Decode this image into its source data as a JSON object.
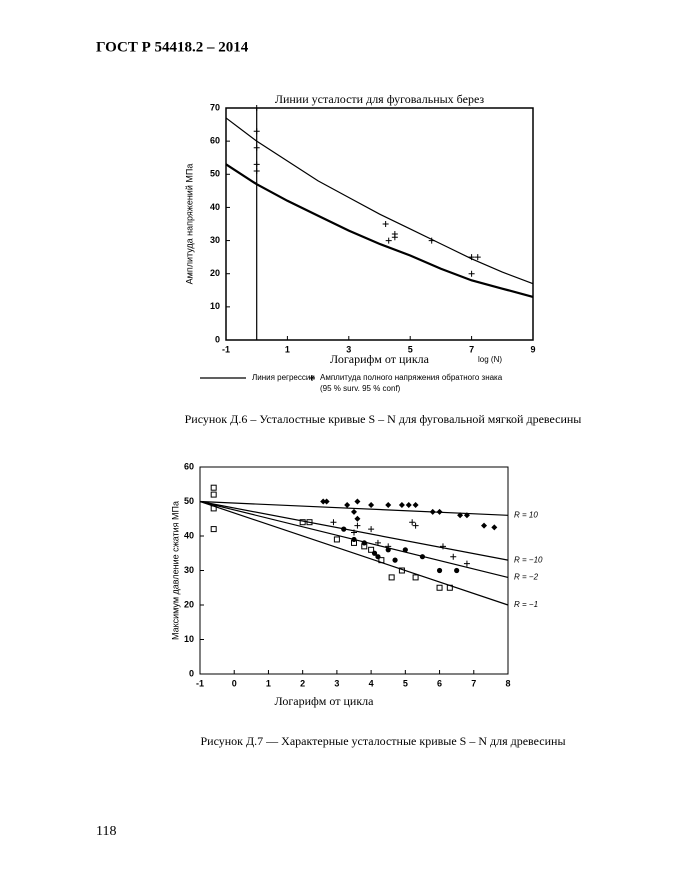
{
  "header": {
    "title": "ГОСТ Р 54418.2 – 2014"
  },
  "page_number": "118",
  "chart_data": [
    {
      "type": "line",
      "title": "Линии усталости для фуговальных берез",
      "ylabel": "Амплитуда напряжений МПа",
      "xlabel": "Логарифм от цикла",
      "xlabel2": "log (N)",
      "xlim": [
        -1,
        9
      ],
      "xticks": [
        -1,
        1,
        3,
        5,
        7,
        9
      ],
      "ylim": [
        0,
        70
      ],
      "yticks": [
        0,
        10,
        20,
        30,
        40,
        50,
        60,
        70
      ],
      "vline": 0,
      "series": [
        {
          "name": "Линия регрессии",
          "type": "line",
          "color": "#000000",
          "x": [
            -1,
            0,
            1,
            2,
            3,
            4,
            5,
            6,
            7,
            8,
            9
          ],
          "values": [
            53,
            47,
            42,
            37.5,
            33,
            29,
            25.5,
            21.5,
            18,
            15.5,
            13
          ]
        },
        {
          "name": "Амплитуда полного напряжения обратного знака",
          "type": "scatter",
          "marker": "plus",
          "color": "#000000",
          "x": [
            0,
            0,
            0,
            0,
            0,
            4.2,
            4.3,
            4.5,
            4.5,
            5.7,
            7,
            7.2,
            7
          ],
          "values": [
            70,
            63,
            58,
            53,
            51,
            35,
            30,
            32,
            31,
            30,
            25,
            25,
            20
          ]
        },
        {
          "type": "line",
          "color": "#000000",
          "x": [
            -1,
            0,
            1,
            2,
            3,
            4,
            5,
            6,
            7,
            8,
            9
          ],
          "values": [
            67,
            60,
            54,
            48,
            43,
            38,
            33.5,
            29,
            24.5,
            20.5,
            17
          ]
        }
      ],
      "legend_note": "(95 % surv. 95 % conf)",
      "caption": "Рисунок Д.6 – Усталостные кривые S – N для фуговальной мягкой древесины"
    },
    {
      "type": "line",
      "ylabel": "Максимум давление сжатия МПа",
      "xlabel": "Логарифм от цикла",
      "xlim": [
        -1,
        8
      ],
      "xticks": [
        -1,
        0,
        1,
        2,
        3,
        4,
        5,
        6,
        7,
        8
      ],
      "ylim": [
        0,
        60
      ],
      "yticks": [
        0,
        10,
        20,
        30,
        40,
        50,
        60
      ],
      "series": [
        {
          "name": "R = 10",
          "type": "line",
          "color": "#000000",
          "x": [
            -1,
            8
          ],
          "values": [
            50,
            46
          ]
        },
        {
          "name": "R = −10",
          "type": "line",
          "color": "#000000",
          "x": [
            -1,
            8
          ],
          "values": [
            50,
            33
          ]
        },
        {
          "name": "R = −2",
          "type": "line",
          "color": "#000000",
          "x": [
            -1,
            8
          ],
          "values": [
            50,
            28
          ]
        },
        {
          "name": "R = −1",
          "type": "line",
          "color": "#000000",
          "x": [
            -1,
            8
          ],
          "values": [
            50,
            20
          ]
        },
        {
          "type": "scatter",
          "marker": "diamond",
          "color": "#000000",
          "x": [
            2.6,
            2.7,
            3.3,
            3.6,
            4,
            4.5,
            4.9,
            5.1,
            5.3,
            5.8,
            6,
            6.6,
            6.8,
            7.3,
            7.6,
            3.5,
            3.6
          ],
          "values": [
            50,
            50,
            49,
            50,
            49,
            49,
            49,
            49,
            49,
            47,
            47,
            46,
            46,
            43,
            42.5,
            47,
            45
          ]
        },
        {
          "type": "scatter",
          "marker": "plus",
          "color": "#000000",
          "x": [
            2.9,
            3.5,
            3.6,
            4,
            4.2,
            4.5,
            5.2,
            5.3,
            6.1,
            6.4,
            6.8
          ],
          "values": [
            44,
            41,
            43,
            42,
            38,
            37,
            44,
            43,
            37,
            34,
            32
          ]
        },
        {
          "type": "scatter",
          "marker": "circle",
          "color": "#000000",
          "x": [
            3.2,
            3.5,
            3.8,
            4.1,
            4.2,
            4.5,
            4.7,
            5,
            5.5,
            6,
            6.5
          ],
          "values": [
            42,
            39,
            38,
            35,
            34,
            36,
            33,
            36,
            34,
            30,
            30
          ]
        },
        {
          "type": "scatter",
          "marker": "square",
          "color": "#000000",
          "x": [
            -0.6,
            -0.6,
            -0.6,
            -0.6,
            2,
            2.2,
            3,
            3.5,
            3.8,
            4,
            4.3,
            4.6,
            4.9,
            5.3,
            6,
            6.3
          ],
          "values": [
            42,
            48,
            52,
            54,
            44,
            44,
            39,
            38,
            37,
            36,
            33,
            28,
            30,
            28,
            25,
            25
          ]
        }
      ],
      "caption": "Рисунок Д.7 — Характерные усталостные кривые S – N для древесины"
    }
  ]
}
